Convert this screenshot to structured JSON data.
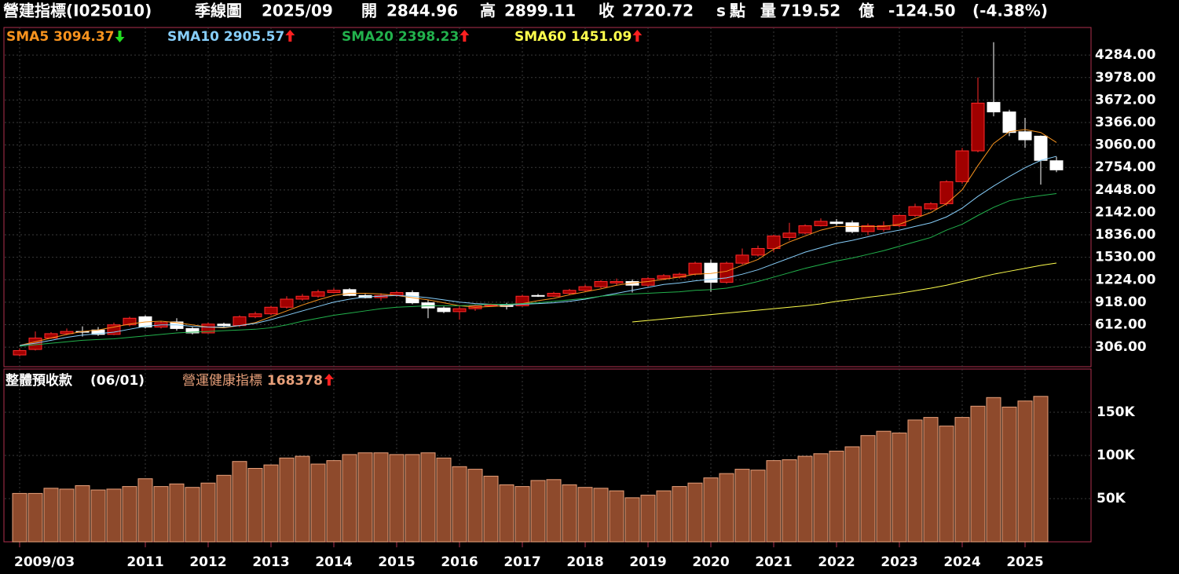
{
  "header": {
    "title": "營建指標(I025010)",
    "period": "季線圖",
    "date": "2025/09",
    "open_label": "開",
    "high_label": "高",
    "close_label": "收",
    "close_flag": "s",
    "unit": "點",
    "volume_label": "量",
    "volume": "719.52",
    "volume_unit": "億",
    "change": "-124.50",
    "change_pct": "(-4.38%)"
  },
  "chart_data": [
    {
      "type": "candlestick",
      "up_color": "#a00000",
      "up_edge": "#ff2a2a",
      "down_color": "#ffffff",
      "grid": true,
      "categories": [
        "2009/03",
        null,
        null,
        null,
        null,
        null,
        null,
        null,
        "2011",
        null,
        null,
        null,
        "2012",
        null,
        null,
        null,
        "2013",
        null,
        null,
        null,
        "2014",
        null,
        null,
        null,
        "2015",
        null,
        null,
        null,
        "2016",
        null,
        null,
        null,
        "2017",
        null,
        null,
        null,
        "2018",
        null,
        null,
        null,
        "2019",
        null,
        null,
        null,
        "2020",
        null,
        null,
        null,
        "2021",
        null,
        null,
        null,
        "2022",
        null,
        null,
        null,
        "2023",
        null,
        null,
        null,
        "2024",
        null,
        null,
        null,
        "2025",
        null,
        null
      ],
      "open": [
        200,
        275,
        430,
        490,
        520,
        540,
        480,
        610,
        720,
        580,
        650,
        560,
        500,
        620,
        600,
        720,
        760,
        850,
        960,
        1000,
        1050,
        1090,
        1010,
        980,
        1010,
        1050,
        910,
        840,
        790,
        830,
        870,
        890,
        870,
        1010,
        1000,
        1040,
        1080,
        1130,
        1180,
        1200,
        1150,
        1240,
        1260,
        1300,
        1450,
        1190,
        1450,
        1560,
        1650,
        1800,
        1860,
        1960,
        2010,
        2000,
        1880,
        1910,
        1960,
        2100,
        2190,
        2260,
        2560,
        2980,
        3640,
        3510,
        3240,
        3180,
        2844.96
      ],
      "high": [
        290,
        520,
        510,
        560,
        590,
        580,
        640,
        720,
        740,
        660,
        700,
        580,
        640,
        640,
        740,
        790,
        870,
        1000,
        1030,
        1090,
        1110,
        1110,
        1030,
        1040,
        1070,
        1080,
        950,
        860,
        880,
        890,
        900,
        910,
        1020,
        1030,
        1060,
        1100,
        1160,
        1220,
        1240,
        1230,
        1260,
        1300,
        1320,
        1470,
        1500,
        1470,
        1650,
        1690,
        1840,
        2000,
        1980,
        2060,
        2050,
        2030,
        1990,
        2020,
        2120,
        2260,
        2280,
        2580,
        3020,
        3980,
        4460,
        3540,
        3430,
        3190,
        2899.11
      ],
      "low": [
        180,
        260,
        420,
        470,
        450,
        460,
        470,
        590,
        560,
        560,
        530,
        480,
        490,
        580,
        580,
        700,
        740,
        830,
        940,
        980,
        1040,
        1000,
        970,
        940,
        990,
        890,
        700,
        770,
        680,
        800,
        860,
        820,
        860,
        990,
        990,
        1020,
        1060,
        1110,
        1150,
        1050,
        1130,
        1220,
        1240,
        1280,
        1060,
        1170,
        1430,
        1540,
        1600,
        1760,
        1840,
        1950,
        1960,
        1860,
        1830,
        1880,
        1940,
        2080,
        2170,
        2230,
        2530,
        2960,
        3450,
        3180,
        3020,
        2520,
        2690
      ],
      "close": [
        260,
        430,
        490,
        520,
        510,
        480,
        610,
        700,
        580,
        640,
        560,
        500,
        620,
        600,
        720,
        760,
        850,
        960,
        1000,
        1060,
        1080,
        1010,
        980,
        1010,
        1050,
        910,
        840,
        790,
        830,
        870,
        880,
        860,
        1000,
        1000,
        1040,
        1080,
        1130,
        1200,
        1200,
        1150,
        1240,
        1280,
        1300,
        1450,
        1190,
        1450,
        1560,
        1650,
        1820,
        1860,
        1960,
        2020,
        1990,
        1880,
        1960,
        1960,
        2100,
        2220,
        2260,
        2560,
        2980,
        3630,
        3510,
        3230,
        3130,
        2850,
        2720.72
      ],
      "series": [
        {
          "name": "SMA5",
          "color": "#f7931e",
          "trend": "down",
          "values": [
            330,
            380,
            430,
            480,
            520,
            540,
            580,
            620,
            650,
            660,
            640,
            610,
            580,
            570,
            600,
            640,
            720,
            800,
            880,
            950,
            1010,
            1040,
            1040,
            1030,
            1010,
            980,
            950,
            910,
            870,
            850,
            860,
            870,
            900,
            940,
            970,
            1020,
            1060,
            1100,
            1150,
            1180,
            1200,
            1230,
            1260,
            1300,
            1310,
            1340,
            1420,
            1500,
            1640,
            1740,
            1820,
            1900,
            1950,
            1950,
            1950,
            1950,
            1980,
            2060,
            2140,
            2260,
            2450,
            2780,
            3080,
            3240,
            3270,
            3230,
            3094.37
          ]
        },
        {
          "name": "SMA10",
          "color": "#87cefa",
          "trend": "up",
          "values": [
            330,
            360,
            400,
            440,
            470,
            490,
            510,
            550,
            590,
            610,
            610,
            590,
            580,
            580,
            600,
            630,
            680,
            740,
            800,
            860,
            920,
            960,
            990,
            1000,
            1010,
            1000,
            980,
            950,
            920,
            900,
            890,
            880,
            890,
            900,
            910,
            930,
            960,
            1000,
            1040,
            1080,
            1120,
            1160,
            1180,
            1210,
            1230,
            1250,
            1300,
            1360,
            1440,
            1520,
            1600,
            1660,
            1720,
            1760,
            1810,
            1860,
            1900,
            1950,
            2000,
            2080,
            2200,
            2360,
            2500,
            2630,
            2750,
            2850,
            2905.57
          ]
        },
        {
          "name": "SMA20",
          "color": "#22b14c",
          "trend": "up",
          "values": [
            320,
            340,
            360,
            380,
            400,
            410,
            420,
            440,
            460,
            480,
            500,
            510,
            520,
            530,
            540,
            550,
            570,
            610,
            660,
            700,
            740,
            770,
            800,
            830,
            850,
            860,
            870,
            870,
            870,
            880,
            890,
            890,
            900,
            910,
            930,
            950,
            970,
            1000,
            1020,
            1030,
            1040,
            1050,
            1060,
            1080,
            1090,
            1110,
            1150,
            1200,
            1260,
            1320,
            1380,
            1430,
            1480,
            1520,
            1570,
            1620,
            1680,
            1740,
            1800,
            1900,
            1980,
            2100,
            2210,
            2300,
            2340,
            2370,
            2398.23
          ]
        },
        {
          "name": "SMA60",
          "color": "#ffff4d",
          "trend": "up",
          "values": [
            null,
            null,
            null,
            null,
            null,
            null,
            null,
            null,
            null,
            null,
            null,
            null,
            null,
            null,
            null,
            null,
            null,
            null,
            null,
            null,
            null,
            null,
            null,
            null,
            null,
            null,
            null,
            null,
            null,
            null,
            null,
            null,
            null,
            null,
            null,
            null,
            null,
            null,
            null,
            650,
            670,
            690,
            710,
            730,
            750,
            770,
            790,
            810,
            830,
            850,
            870,
            895,
            930,
            955,
            985,
            1010,
            1040,
            1075,
            1110,
            1150,
            1200,
            1250,
            1300,
            1340,
            1380,
            1420,
            1451.09
          ]
        }
      ],
      "ylim": [
        40,
        4660
      ],
      "yticks": [
        {
          "value": 306,
          "label": "306.00"
        },
        {
          "value": 612,
          "label": "612.00"
        },
        {
          "value": 918,
          "label": "918.00"
        },
        {
          "value": 1224,
          "label": "1224.00"
        },
        {
          "value": 1530,
          "label": "1530.00"
        },
        {
          "value": 1836,
          "label": "1836.00"
        },
        {
          "value": 2142,
          "label": "2142.00"
        },
        {
          "value": 2448,
          "label": "2448.00"
        },
        {
          "value": 2754,
          "label": "2754.00"
        },
        {
          "value": 3060,
          "label": "3060.00"
        },
        {
          "value": 3366,
          "label": "3366.00"
        },
        {
          "value": 3672,
          "label": "3672.00"
        },
        {
          "value": 3978,
          "label": "3978.00"
        },
        {
          "value": 4284,
          "label": "4284.00"
        }
      ]
    },
    {
      "type": "bar",
      "title": "整體預收款",
      "subtitle": "(06/01)",
      "grid": true,
      "series": [
        {
          "name": "營運健康指標",
          "color": "#8e4a2c",
          "edge": "#e8a07a",
          "trend": "up",
          "values": [
            56000,
            56000,
            62000,
            61000,
            65000,
            60000,
            61000,
            64000,
            73000,
            64000,
            67000,
            63000,
            68000,
            77000,
            93000,
            85000,
            89000,
            97000,
            99000,
            90000,
            94000,
            101000,
            103000,
            103000,
            101000,
            101000,
            103000,
            97000,
            87000,
            84000,
            76000,
            66000,
            64000,
            71000,
            72000,
            66000,
            63000,
            62000,
            59000,
            51000,
            54000,
            59000,
            64000,
            68000,
            74000,
            79000,
            84000,
            83000,
            94000,
            95000,
            99000,
            102000,
            105000,
            110000,
            123000,
            128000,
            126000,
            141000,
            144000,
            134000,
            144000,
            157000,
            167000,
            156000,
            163000,
            168378
          ]
        }
      ],
      "ylim": [
        0,
        200000
      ],
      "yticks": [
        {
          "value": 50000,
          "label": "50K"
        },
        {
          "value": 100000,
          "label": "100K"
        },
        {
          "value": 150000,
          "label": "150K"
        }
      ]
    }
  ]
}
